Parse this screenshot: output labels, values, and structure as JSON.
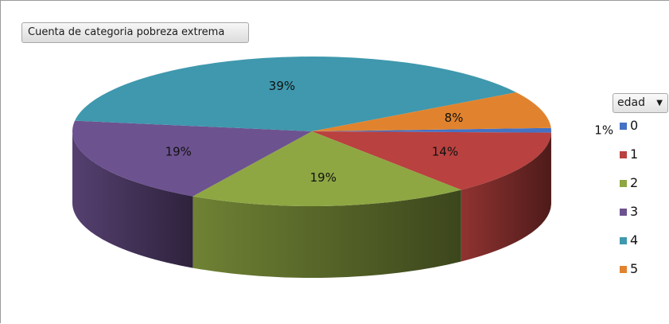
{
  "chart_data": {
    "type": "pie",
    "title": "Cuenta de categoria  pobreza extrema",
    "legend_title": "edad",
    "legend_position": "right",
    "categories": [
      "0",
      "1",
      "2",
      "3",
      "4",
      "5"
    ],
    "values": [
      1,
      14,
      19,
      19,
      39,
      8
    ],
    "labels": [
      "1%",
      "14%",
      "19%",
      "19%",
      "39%",
      "8%"
    ],
    "colors": [
      "#4472c4",
      "#b9413f",
      "#8ea743",
      "#6d5290",
      "#3f98ad",
      "#e1832e"
    ]
  }
}
